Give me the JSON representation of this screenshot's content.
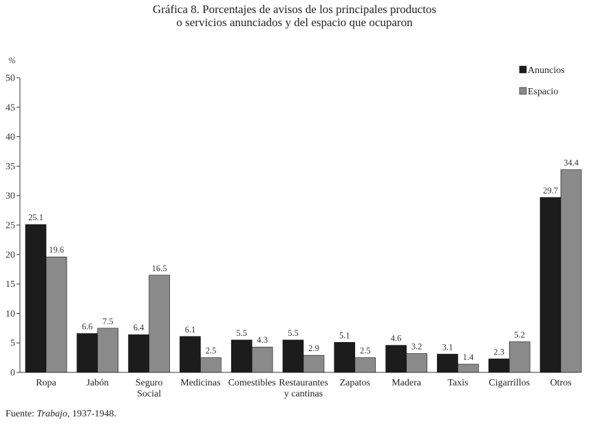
{
  "title_line1": "Gráfica 8. Porcentajes de avisos de los principales productos",
  "title_line2": "o servicios anunciados y del espacio que ocuparon",
  "source_prefix": "Fuente: ",
  "source_italic": "Trabajo",
  "source_suffix": ", 1937-1948.",
  "chart_data": {
    "type": "bar",
    "ylabel": "%",
    "ylim": [
      0,
      50
    ],
    "yticks": [
      0,
      5,
      10,
      15,
      20,
      25,
      30,
      35,
      40,
      45,
      50
    ],
    "grid": false,
    "legend_position": "top-right",
    "categories": [
      [
        "Ropa"
      ],
      [
        "Jabón"
      ],
      [
        "Seguro",
        "Social"
      ],
      [
        "Medicinas"
      ],
      [
        "Comestibles"
      ],
      [
        "Restaurantes",
        "y cantinas"
      ],
      [
        "Zapatos"
      ],
      [
        "Madera"
      ],
      [
        "Taxis"
      ],
      [
        "Cigarrillos"
      ],
      [
        "Otros"
      ]
    ],
    "series": [
      {
        "name": "Anuncios",
        "color": "#1c1c1c",
        "values": [
          25.1,
          6.6,
          6.4,
          6.1,
          5.5,
          5.5,
          5.1,
          4.6,
          3.1,
          2.3,
          29.7
        ],
        "labels": [
          "25.1",
          "6.6",
          "6.4",
          "6.1",
          "5.5",
          "5.5",
          "5.1",
          "4.6",
          "3.1",
          "2.3",
          "29.7"
        ]
      },
      {
        "name": "Espacio",
        "color": "#8a8a8a",
        "values": [
          19.6,
          7.5,
          16.5,
          2.5,
          4.3,
          2.9,
          2.5,
          3.2,
          1.4,
          5.2,
          34.4
        ],
        "labels": [
          "19.6",
          "7.5",
          "16.5",
          "2.5",
          "4.3",
          "2.9",
          "2.5",
          "3.2",
          "1.4",
          "5.2",
          "34.4"
        ]
      }
    ]
  }
}
